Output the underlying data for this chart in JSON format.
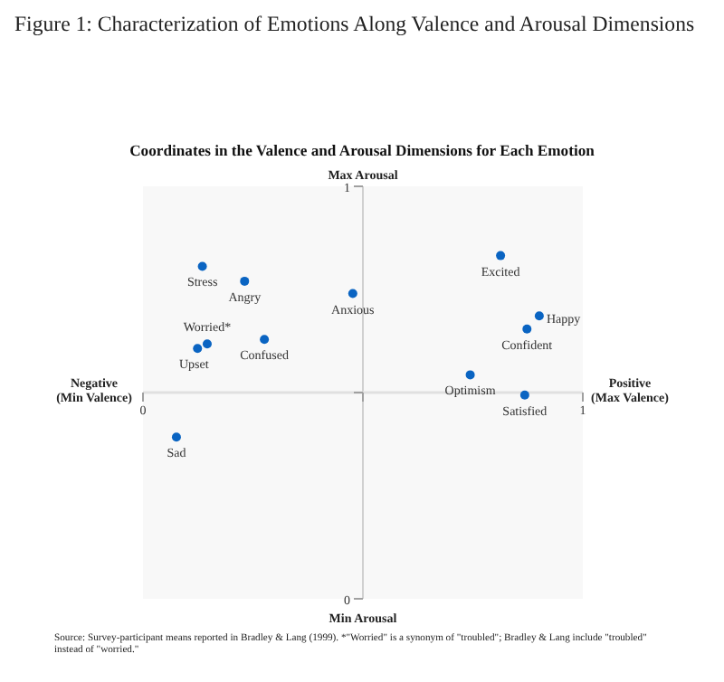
{
  "chart_data": {
    "type": "scatter",
    "title": "Figure 1: Characterization of Emotions Along Valence and Arousal Dimensions",
    "subtitle": "Coordinates in the Valence and Arousal Dimensions for Each Emotion",
    "x": [
      0.135,
      0.231,
      0.477,
      0.146,
      0.124,
      0.276,
      0.076,
      0.813,
      0.901,
      0.873,
      0.744,
      0.868
    ],
    "series": [
      {
        "color": "#0a64c2",
        "values": [
          0.806,
          0.77,
          0.74,
          0.618,
          0.607,
          0.629,
          0.392,
          0.832,
          0.686,
          0.654,
          0.543,
          0.494
        ]
      }
    ],
    "marker": "circle",
    "xlim": [
      0,
      1
    ],
    "ylim": [
      0,
      1
    ],
    "xticks": [
      0,
      {
        "value": 0.5,
        "label": null
      },
      1
    ],
    "yticks": [
      0,
      {
        "value": 0.5,
        "label": null
      },
      1
    ],
    "annotations": [
      {
        "text": "Stress",
        "x": 0.135,
        "y": 0.806
      },
      {
        "text": "Angry",
        "x": 0.231,
        "y": 0.77
      },
      {
        "text": "Anxious",
        "x": 0.477,
        "y": 0.74
      },
      {
        "text": "Worried*",
        "x": 0.146,
        "y": 0.618
      },
      {
        "text": "Upset",
        "x": 0.124,
        "y": 0.607
      },
      {
        "text": "Confused",
        "x": 0.276,
        "y": 0.629
      },
      {
        "text": "Sad",
        "x": 0.076,
        "y": 0.392
      },
      {
        "text": "Excited",
        "x": 0.813,
        "y": 0.832
      },
      {
        "text": "Happy",
        "x": 0.901,
        "y": 0.686
      },
      {
        "text": "Confident",
        "x": 0.873,
        "y": 0.654
      },
      {
        "text": "Optimism",
        "x": 0.744,
        "y": 0.543
      },
      {
        "text": "Satisfied",
        "x": 0.868,
        "y": 0.494
      },
      "Max Arousal",
      "Min Arousal",
      "Negative\n(Min Valence)",
      "Positive\n(Max Valence)",
      "Source:  Survey-participant means reported in Bradley & Lang (1999). *\"Worried\" is a synonym of \"troubled\"; Bradley & Lang include \"troubled\"\ninstead of \"worried.\""
    ]
  }
}
